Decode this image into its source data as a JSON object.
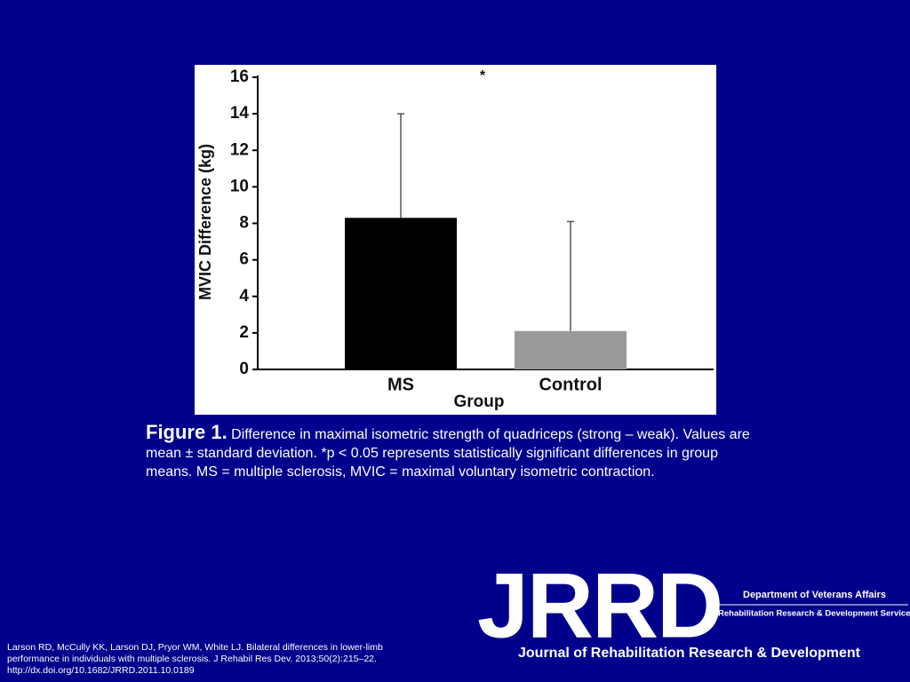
{
  "chart_data": {
    "type": "bar",
    "categories": [
      "MS",
      "Control"
    ],
    "values": [
      8.3,
      2.1
    ],
    "errors": [
      5.7,
      6.0
    ],
    "colors": [
      "#000000",
      "#999999"
    ],
    "ylim": [
      0,
      16
    ],
    "yticks": [
      0,
      2,
      4,
      6,
      8,
      10,
      12,
      14,
      16
    ],
    "xlabel": "Group",
    "ylabel": "MVIC Difference (kg)",
    "annotation": "*"
  },
  "caption": {
    "label": "Figure 1.",
    "text": "Difference in maximal isometric strength of quadriceps (strong – weak). Values are mean ± standard deviation. *p < 0.05 represents statistically significant differences in group means. MS = multiple sclerosis, MVIC = maximal voluntary isometric contraction."
  },
  "citation": [
    "Larson RD, McCully KK, Larson DJ, Pryor WM, White LJ. Bilateral differences in lower-limb",
    "performance in individuals with multiple sclerosis. J Rehabil Res Dev. 2013;50(2):215–22.",
    "http://dx.doi.org/10.1682/JRRD.2011.10.0189"
  ],
  "logo": {
    "acronym": "JRRD",
    "department": "Department of Veterans Affairs",
    "service": "Rehabilitation Research & Development Service",
    "journal": "Journal of Rehabilitation Research & Development"
  }
}
